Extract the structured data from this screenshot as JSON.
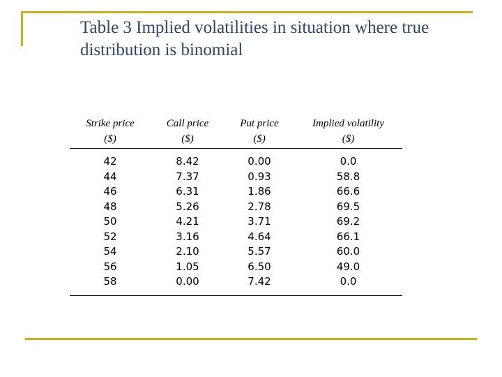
{
  "slide": {
    "title_line1": "Table 3 Implied volatilities in situation where true",
    "title_line2": "distribution is binomial",
    "accent_color": "#c8b21e",
    "title_color": "#2c466e"
  },
  "table": {
    "headers": [
      {
        "line1": "Strike price",
        "line2": "($)"
      },
      {
        "line1": "Call price",
        "line2": "($)"
      },
      {
        "line1": "Put price",
        "line2": "($)"
      },
      {
        "line1": "Implied volatility",
        "line2": "($)"
      }
    ],
    "rows": [
      [
        "42",
        "8.42",
        "0.00",
        "0.0"
      ],
      [
        "44",
        "7.37",
        "0.93",
        "58.8"
      ],
      [
        "46",
        "6.31",
        "1.86",
        "66.6"
      ],
      [
        "48",
        "5.26",
        "2.78",
        "69.5"
      ],
      [
        "50",
        "4.21",
        "3.71",
        "69.2"
      ],
      [
        "52",
        "3.16",
        "4.64",
        "66.1"
      ],
      [
        "54",
        "2.10",
        "5.57",
        "60.0"
      ],
      [
        "56",
        "1.05",
        "6.50",
        "49.0"
      ],
      [
        "58",
        "0.00",
        "7.42",
        "0.0"
      ]
    ]
  }
}
